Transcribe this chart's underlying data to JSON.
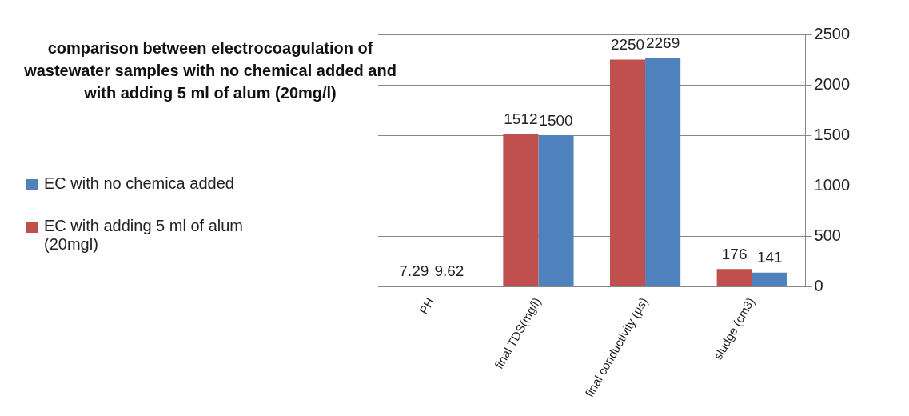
{
  "chart_data": {
    "type": "bar",
    "title": "comparison between electrocoagulation of wastewater samples with no chemical added and with adding 5 ml of alum (20mg/l)",
    "categories": [
      "PH",
      "final TDS(mg/l)",
      "final conductivity (µs)",
      "sludge (cm3)"
    ],
    "series": [
      {
        "name": "EC with adding 5 ml of alum (20mgl)",
        "color": "#c0504d",
        "values": [
          7.29,
          1512,
          2250,
          176
        ]
      },
      {
        "name": "EC with no chemica added",
        "color": "#4f81bd",
        "values": [
          9.62,
          1500,
          2269,
          141
        ]
      }
    ],
    "ylim": [
      0,
      2500
    ],
    "yticks": [
      0,
      500,
      1000,
      1500,
      2000,
      2500
    ],
    "grid": "y",
    "legend": "left",
    "data_labels": true
  }
}
